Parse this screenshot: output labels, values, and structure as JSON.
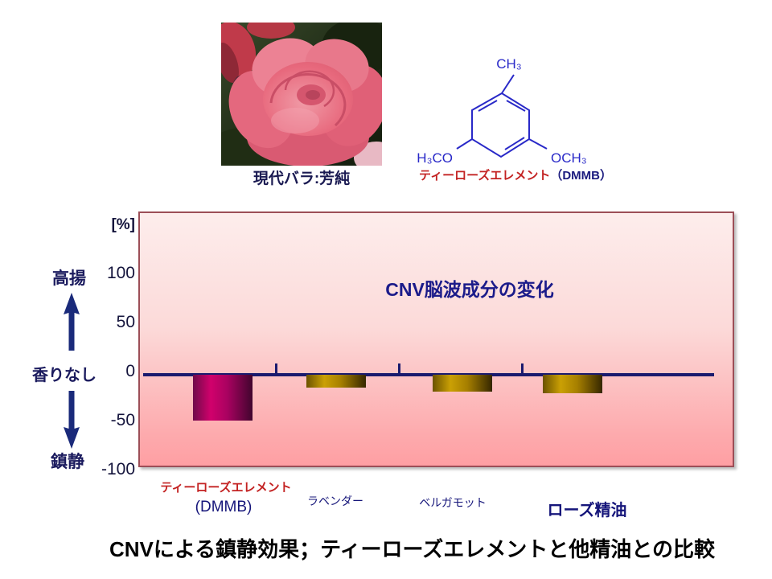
{
  "header": {
    "rose_caption": "現代バラ:芳純",
    "molecule": {
      "top_group": "CH₃",
      "left_group": "H₃CO",
      "right_group": "OCH₃",
      "caption_red": "ティーローズエレメント",
      "caption_suffix": "（DMMB）"
    }
  },
  "chart_data": {
    "type": "bar",
    "title": "CNV脳波成分の変化",
    "unit_label": "[%]",
    "categories": [
      "ティーローズエレメント（DMMB）",
      "ラベンダー",
      "ベルガモット",
      "ローズ精油"
    ],
    "values": [
      -47,
      -13,
      -17,
      -19
    ],
    "yticks": [
      100,
      50,
      0,
      -50,
      -100
    ],
    "ylim": [
      -100,
      100
    ],
    "grid": false,
    "legend": false,
    "bar_color_styles": [
      "magenta",
      "gold",
      "gold",
      "gold"
    ],
    "plot_background_gradient": [
      "#fdedec",
      "#fe9fa3"
    ],
    "axis_color": "#1a1a6e",
    "plot_border_color": "#9c4e57",
    "bar_colors": {
      "magenta_peak": "#d1016c",
      "gold_peak": "#caa004"
    }
  },
  "axis_annotations": {
    "top_label": "高揚",
    "middle_label": "香りなし",
    "bottom_label": "鎮静"
  },
  "x_labels": {
    "cat1_line1": "ティーローズエレメント",
    "cat1_line2": "(DMMB)",
    "cat2": "ラベンダー",
    "cat3": "ベルガモット",
    "cat4": "ローズ精油"
  },
  "footer": {
    "title": "CNVによる鎮静効果；ティーローズエレメントと他精油との比較"
  },
  "colors": {
    "navy_text": "#1b1b7e",
    "red_text": "#c32222",
    "molecule_blue": "#2929c8",
    "title_black": "#000000"
  }
}
